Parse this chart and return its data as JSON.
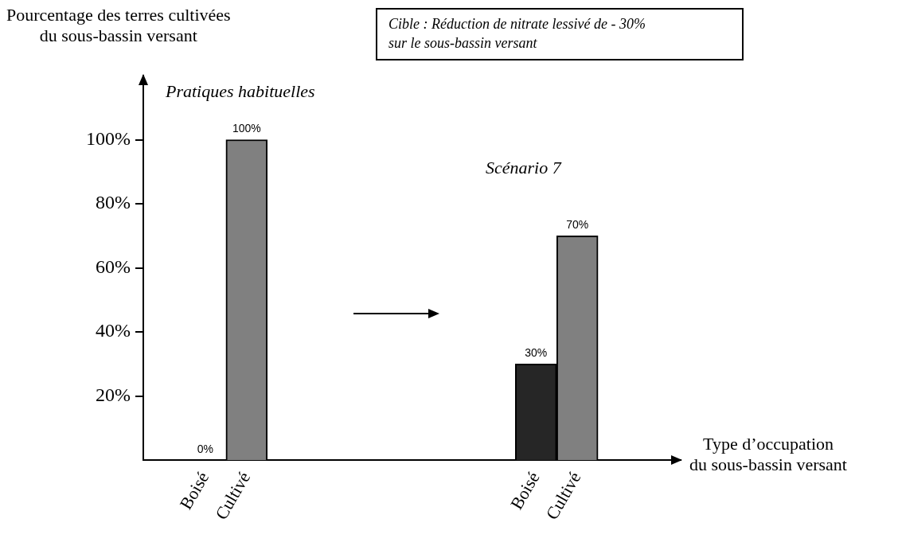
{
  "chart_data": {
    "type": "bar",
    "ylabel": "Pourcentage des terres cultivées\ndu sous-bassin versant",
    "xlabel": "Type d’occupation\ndu sous-bassin versant",
    "annotations": [
      "Cible : Réduction de nitrate lessivé de - 30%\nsur le sous-bassin versant",
      "Pratiques habituelles",
      "Scénario 7"
    ],
    "categories": [
      null,
      "Boisé",
      "Cultivé",
      null,
      null,
      null,
      null,
      null,
      null,
      "Boisé",
      "Cultivé",
      null,
      null
    ],
    "values": [
      null,
      0,
      100,
      null,
      null,
      null,
      null,
      null,
      null,
      30,
      70,
      null,
      null
    ],
    "colors": [
      "#262626",
      "#262626",
      "#808080",
      "#808080",
      "#808080",
      "#808080",
      "#808080",
      "#808080",
      "#808080",
      "#262626",
      "#808080",
      "#808080",
      "#808080"
    ],
    "value_labels": [
      null,
      "0%",
      "100%",
      null,
      null,
      null,
      null,
      null,
      null,
      "30%",
      "70%",
      null,
      null
    ],
    "ylim": [
      0,
      120
    ],
    "yticks": [
      {
        "value": 20,
        "label": "20%"
      },
      {
        "value": 40,
        "label": "40%"
      },
      {
        "value": 60,
        "label": "60%"
      },
      {
        "value": 80,
        "label": "80%"
      },
      {
        "value": 100,
        "label": "100%"
      }
    ],
    "legend": false
  }
}
